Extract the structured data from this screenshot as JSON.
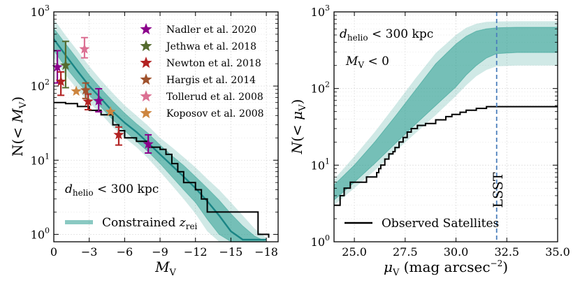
{
  "chart_data": [
    {
      "type": "line",
      "panel": "left",
      "xlabel": "M_V",
      "ylabel": "N(< M_V)",
      "xlim": [
        0,
        -19
      ],
      "ylim_log10": [
        -0.1,
        3
      ],
      "yscale": "log",
      "x_ticks": [
        {
          "v": 0,
          "label": "0"
        },
        {
          "v": -3,
          "label": "−3"
        },
        {
          "v": -6,
          "label": "−6"
        },
        {
          "v": -9,
          "label": "−9"
        },
        {
          "v": -12,
          "label": "−12"
        },
        {
          "v": -15,
          "label": "−15"
        },
        {
          "v": -18,
          "label": "−18"
        }
      ],
      "y_ticks": [
        {
          "v": 0,
          "base": "10",
          "exp": "0"
        },
        {
          "v": 1,
          "base": "10",
          "exp": "1"
        },
        {
          "v": 2,
          "base": "10",
          "exp": "2"
        },
        {
          "v": 3,
          "base": "10",
          "exp": "3"
        }
      ],
      "annotation": {
        "prefix": "d",
        "sub": "helio",
        "rest": " < 300 kpc"
      },
      "band_color": "#2a9d8f",
      "series_observed": {
        "name": "Observed Satellites",
        "color": "#000000",
        "steps": [
          [
            0,
            60
          ],
          [
            -1,
            58
          ],
          [
            -2,
            53
          ],
          [
            -3,
            47
          ],
          [
            -4,
            41
          ],
          [
            -5,
            30
          ],
          [
            -5.5,
            25
          ],
          [
            -6,
            20
          ],
          [
            -7,
            18
          ],
          [
            -8,
            15
          ],
          [
            -9,
            14
          ],
          [
            -9.5,
            12
          ],
          [
            -10,
            9
          ],
          [
            -10.5,
            7
          ],
          [
            -11,
            5
          ],
          [
            -12,
            4
          ],
          [
            -12.5,
            3
          ],
          [
            -13,
            2
          ],
          [
            -15,
            2
          ],
          [
            -17.3,
            2
          ],
          [
            -17.3,
            1
          ],
          [
            -18.2,
            1
          ],
          [
            -18.2,
            0.9
          ]
        ]
      },
      "series_constrained": {
        "name": "Constrained z_rei",
        "legend_text": "Constrained ",
        "legend_math": "z",
        "legend_sub": "rei",
        "median": [
          [
            0,
            430
          ],
          [
            -1,
            260
          ],
          [
            -2,
            160
          ],
          [
            -3,
            100
          ],
          [
            -4,
            68
          ],
          [
            -5,
            45
          ],
          [
            -6,
            32
          ],
          [
            -7,
            24
          ],
          [
            -8,
            17
          ],
          [
            -9,
            12
          ],
          [
            -10,
            8.5
          ],
          [
            -11,
            6
          ],
          [
            -12,
            4.2
          ],
          [
            -13,
            2.8
          ],
          [
            -14,
            1.8
          ],
          [
            -15,
            1.1
          ],
          [
            -16,
            0.85
          ],
          [
            -18,
            0.85
          ]
        ],
        "inner_low": [
          [
            0,
            300
          ],
          [
            -1,
            180
          ],
          [
            -2,
            115
          ],
          [
            -3,
            75
          ],
          [
            -4,
            52
          ],
          [
            -5,
            35
          ],
          [
            -6,
            25
          ],
          [
            -7,
            18
          ],
          [
            -8,
            13
          ],
          [
            -9,
            9
          ],
          [
            -10,
            6
          ],
          [
            -11,
            4
          ],
          [
            -12,
            2.7
          ],
          [
            -13,
            1.6
          ],
          [
            -14,
            1.0
          ],
          [
            -15,
            0.8
          ],
          [
            -18,
            0.8
          ]
        ],
        "inner_high": [
          [
            0,
            600
          ],
          [
            -1,
            370
          ],
          [
            -2,
            230
          ],
          [
            -3,
            140
          ],
          [
            -4,
            92
          ],
          [
            -5,
            62
          ],
          [
            -6,
            43
          ],
          [
            -7,
            31
          ],
          [
            -8,
            23
          ],
          [
            -9,
            16
          ],
          [
            -10,
            11.5
          ],
          [
            -11,
            8.5
          ],
          [
            -12,
            6
          ],
          [
            -13,
            4.2
          ],
          [
            -14,
            2.9
          ],
          [
            -15,
            1.9
          ],
          [
            -16,
            1.3
          ],
          [
            -17,
            0.95
          ],
          [
            -18,
            0.8
          ]
        ],
        "outer_low": [
          [
            0,
            240
          ],
          [
            -1,
            140
          ],
          [
            -2,
            90
          ],
          [
            -3,
            60
          ],
          [
            -4,
            42
          ],
          [
            -5,
            28
          ],
          [
            -6,
            20
          ],
          [
            -7,
            15
          ],
          [
            -8,
            10.5
          ],
          [
            -9,
            7
          ],
          [
            -10,
            4.6
          ],
          [
            -11,
            3
          ],
          [
            -12,
            1.9
          ],
          [
            -13,
            1.1
          ],
          [
            -14,
            0.8
          ],
          [
            -18,
            0.8
          ]
        ],
        "outer_high": [
          [
            0,
            800
          ],
          [
            -1,
            480
          ],
          [
            -2,
            300
          ],
          [
            -3,
            185
          ],
          [
            -4,
            120
          ],
          [
            -5,
            80
          ],
          [
            -6,
            55
          ],
          [
            -7,
            40
          ],
          [
            -8,
            29
          ],
          [
            -9,
            20
          ],
          [
            -10,
            15
          ],
          [
            -11,
            11
          ],
          [
            -12,
            8
          ],
          [
            -13,
            5.6
          ],
          [
            -14,
            4
          ],
          [
            -15,
            2.7
          ],
          [
            -16,
            1.8
          ],
          [
            -17,
            1.2
          ],
          [
            -18,
            0.9
          ]
        ]
      },
      "literature": [
        {
          "name": "Nadler et al. 2020",
          "color": "#8b008b",
          "points": [
            {
              "x": -0.3,
              "y": 180,
              "lo": 110,
              "hi": 300
            },
            {
              "x": -3.8,
              "y": 63,
              "lo": 45,
              "hi": 92
            },
            {
              "x": -8.0,
              "y": 16.5,
              "lo": 12.5,
              "hi": 22
            }
          ]
        },
        {
          "name": "Jethwa et al. 2018",
          "color": "#556b2f",
          "points": [
            {
              "x": -1.0,
              "y": 190,
              "lo": 95,
              "hi": 400
            }
          ]
        },
        {
          "name": "Newton et al. 2018",
          "color": "#b22222",
          "points": [
            {
              "x": -0.6,
              "y": 115,
              "lo": 75,
              "hi": 155
            },
            {
              "x": -2.9,
              "y": 62,
              "lo": 48,
              "hi": 78
            },
            {
              "x": -5.5,
              "y": 22,
              "lo": 16,
              "hi": 28
            }
          ]
        },
        {
          "name": "Hargis et al. 2014",
          "color": "#a0522d",
          "points": [
            {
              "x": -2.7,
              "y": 88,
              "lo": 68,
              "hi": 110
            }
          ]
        },
        {
          "name": "Tollerud et al. 2008",
          "color": "#db7093",
          "points": [
            {
              "x": -2.6,
              "y": 315,
              "lo": 240,
              "hi": 450
            }
          ]
        },
        {
          "name": "Koposov et al. 2008",
          "color": "#cd853f",
          "points": [
            {
              "x": -1.9,
              "y": 85
            },
            {
              "x": -4.8,
              "y": 45
            }
          ]
        }
      ]
    },
    {
      "type": "line",
      "panel": "right",
      "xlabel": "μ_V (mag arcsec^-2)",
      "ylabel": "N(< μ_V)",
      "xlim": [
        24,
        35
      ],
      "ylim_log10": [
        0,
        3
      ],
      "yscale": "log",
      "x_ticks": [
        {
          "v": 25,
          "label": "25.0"
        },
        {
          "v": 27.5,
          "label": "27.5"
        },
        {
          "v": 30,
          "label": "30.0"
        },
        {
          "v": 32.5,
          "label": "32.5"
        },
        {
          "v": 35,
          "label": "35.0"
        }
      ],
      "y_ticks": [
        {
          "v": 0,
          "base": "10",
          "exp": "0"
        },
        {
          "v": 1,
          "base": "10",
          "exp": "1"
        },
        {
          "v": 2,
          "base": "10",
          "exp": "2"
        },
        {
          "v": 3,
          "base": "10",
          "exp": "3"
        }
      ],
      "annotation_1": {
        "prefix": "d",
        "sub": "helio",
        "rest": " < 300 kpc"
      },
      "annotation_2": {
        "prefix": "M",
        "sub": "V",
        "rest": " < 0"
      },
      "lsst": {
        "x": 32,
        "label": "LSST",
        "color": "#4a7ebb"
      },
      "band_color": "#2a9d8f",
      "series_observed": {
        "name": "Observed Satellites",
        "color": "#000000",
        "steps": [
          [
            24,
            3
          ],
          [
            24.3,
            3
          ],
          [
            24.3,
            4
          ],
          [
            24.5,
            4
          ],
          [
            24.5,
            5
          ],
          [
            24.8,
            5
          ],
          [
            24.8,
            6
          ],
          [
            25.6,
            6
          ],
          [
            25.6,
            7
          ],
          [
            26.1,
            7
          ],
          [
            26.1,
            8
          ],
          [
            26.2,
            8
          ],
          [
            26.2,
            9
          ],
          [
            26.3,
            9
          ],
          [
            26.3,
            10
          ],
          [
            26.5,
            10
          ],
          [
            26.5,
            12
          ],
          [
            26.7,
            12
          ],
          [
            26.7,
            14
          ],
          [
            26.9,
            14
          ],
          [
            26.9,
            15
          ],
          [
            27.0,
            15
          ],
          [
            27.0,
            17
          ],
          [
            27.2,
            17
          ],
          [
            27.2,
            20
          ],
          [
            27.4,
            20
          ],
          [
            27.4,
            23
          ],
          [
            27.6,
            23
          ],
          [
            27.6,
            27
          ],
          [
            27.8,
            27
          ],
          [
            27.8,
            30
          ],
          [
            28.1,
            30
          ],
          [
            28.1,
            33
          ],
          [
            28.5,
            33
          ],
          [
            28.5,
            35
          ],
          [
            29.0,
            35
          ],
          [
            29.0,
            39
          ],
          [
            29.5,
            39
          ],
          [
            29.5,
            43
          ],
          [
            29.8,
            43
          ],
          [
            29.8,
            46
          ],
          [
            30.2,
            46
          ],
          [
            30.2,
            49
          ],
          [
            30.5,
            49
          ],
          [
            30.5,
            52
          ],
          [
            31.0,
            52
          ],
          [
            31.0,
            55
          ],
          [
            31.5,
            55
          ],
          [
            31.5,
            58
          ],
          [
            35,
            58
          ]
        ]
      },
      "band_inner": {
        "low": [
          [
            24,
            3.5
          ],
          [
            25,
            6
          ],
          [
            26,
            10.5
          ],
          [
            27,
            19
          ],
          [
            28,
            34
          ],
          [
            29,
            60
          ],
          [
            30,
            105
          ],
          [
            30.5,
            150
          ],
          [
            31,
            200
          ],
          [
            31.5,
            250
          ],
          [
            32,
            285
          ],
          [
            33,
            295
          ],
          [
            35,
            295
          ]
        ],
        "high": [
          [
            24,
            5.5
          ],
          [
            25,
            10
          ],
          [
            26,
            20
          ],
          [
            27,
            43
          ],
          [
            28,
            95
          ],
          [
            29,
            210
          ],
          [
            30,
            380
          ],
          [
            30.5,
            480
          ],
          [
            31,
            560
          ],
          [
            31.5,
            600
          ],
          [
            32,
            620
          ],
          [
            33,
            630
          ],
          [
            35,
            630
          ]
        ]
      },
      "band_outer": {
        "low": [
          [
            24,
            3
          ],
          [
            25,
            5
          ],
          [
            26,
            8.5
          ],
          [
            27,
            15
          ],
          [
            28,
            26
          ],
          [
            29,
            45
          ],
          [
            30,
            80
          ],
          [
            30.5,
            110
          ],
          [
            31,
            145
          ],
          [
            31.5,
            175
          ],
          [
            32,
            195
          ],
          [
            33,
            200
          ],
          [
            35,
            200
          ]
        ],
        "high": [
          [
            24,
            6.5
          ],
          [
            25,
            13
          ],
          [
            26,
            27
          ],
          [
            27,
            60
          ],
          [
            28,
            135
          ],
          [
            29,
            290
          ],
          [
            30,
            500
          ],
          [
            30.5,
            620
          ],
          [
            31,
            700
          ],
          [
            31.5,
            740
          ],
          [
            32,
            750
          ],
          [
            33,
            755
          ],
          [
            35,
            755
          ]
        ]
      }
    }
  ]
}
